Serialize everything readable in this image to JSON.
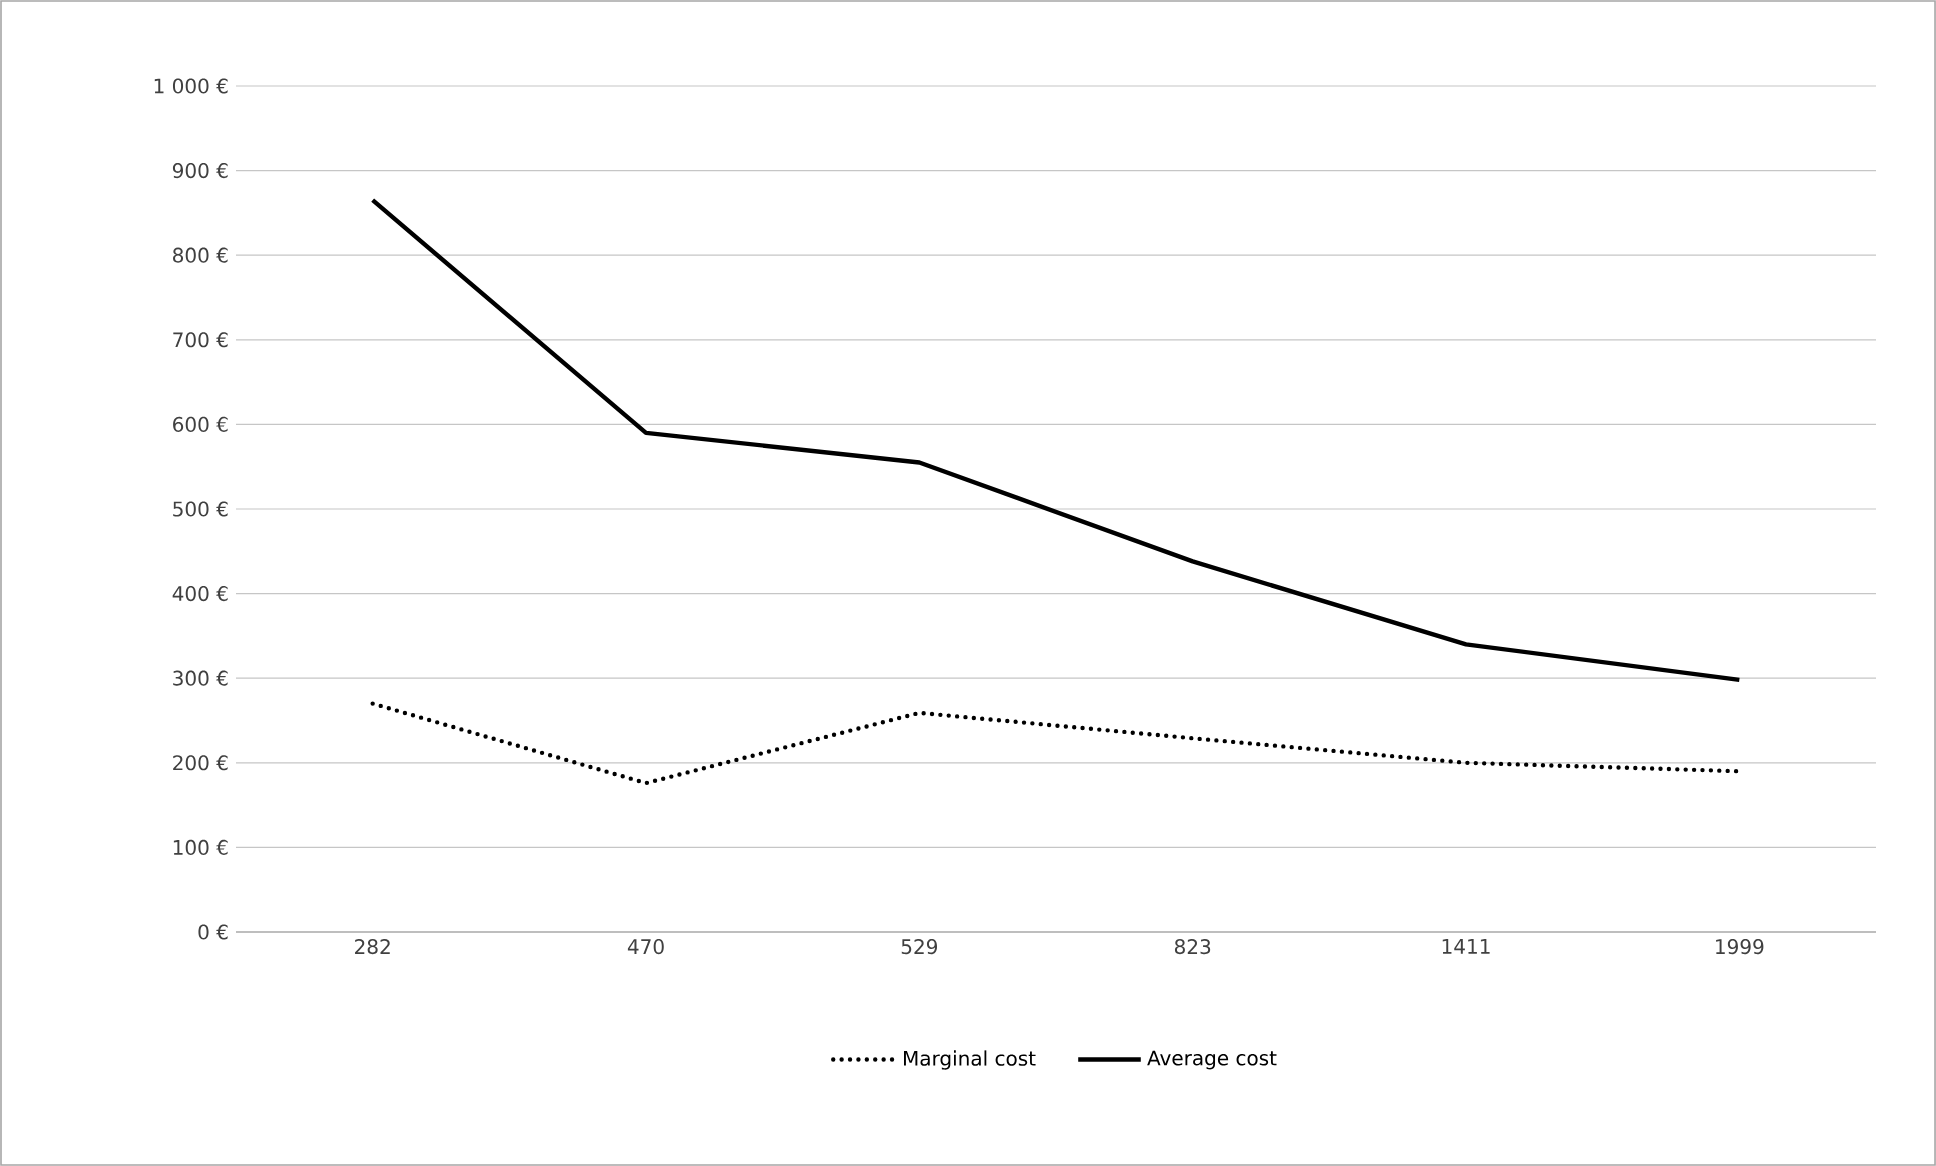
{
  "chart_data": {
    "type": "line",
    "categories": [
      "282",
      "470",
      "529",
      "823",
      "1411",
      "1999"
    ],
    "series": [
      {
        "name": "Marginal cost",
        "color": "#000000",
        "line_style": "dotted",
        "values": [
          270,
          176,
          259,
          229,
          200,
          190
        ]
      },
      {
        "name": "Average cost",
        "color": "#000000",
        "line_style": "solid",
        "values": [
          865,
          590,
          555,
          438,
          340,
          298
        ]
      }
    ],
    "ylim": [
      0,
      1000
    ],
    "yticks": [
      {
        "value": 0,
        "label": "0 €"
      },
      {
        "value": 100,
        "label": "100 €"
      },
      {
        "value": 200,
        "label": "200 €"
      },
      {
        "value": 300,
        "label": "300 €"
      },
      {
        "value": 400,
        "label": "400 €"
      },
      {
        "value": 500,
        "label": "500 €"
      },
      {
        "value": 600,
        "label": "600 €"
      },
      {
        "value": 700,
        "label": "700 €"
      },
      {
        "value": 800,
        "label": "800 €"
      },
      {
        "value": 900,
        "label": "900 €"
      },
      {
        "value": 1000,
        "label": "1 000 €"
      }
    ],
    "grid": "y",
    "legend": "bottom",
    "marker": "none"
  }
}
